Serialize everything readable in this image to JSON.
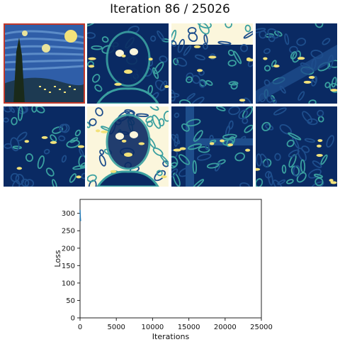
{
  "header": {
    "title": "Iteration 86 / 25026"
  },
  "tiles": [
    {
      "name": "style-reference-image",
      "kind": "starry-night"
    },
    {
      "name": "generated-face-1",
      "kind": "face-dark"
    },
    {
      "name": "generated-sky-1",
      "kind": "bright-band"
    },
    {
      "name": "generated-arm-1",
      "kind": "diagonal"
    },
    {
      "name": "generated-landscape-1",
      "kind": "waves"
    },
    {
      "name": "generated-face-2",
      "kind": "face-light"
    },
    {
      "name": "generated-landscape-2",
      "kind": "corner"
    },
    {
      "name": "generated-landscape-3",
      "kind": "streaks"
    }
  ],
  "colors": {
    "deep_blue": "#0a2a63",
    "mid_blue": "#1e4e8c",
    "teal": "#3aa0a0",
    "cream": "#fbf6dc",
    "yellow": "#f3e27a",
    "line": "#1f77b4"
  },
  "chart_data": {
    "type": "line",
    "xlabel": "Iterations",
    "ylabel": "Loss",
    "xlim": [
      0,
      25000
    ],
    "ylim": [
      0,
      340
    ],
    "xticks": [
      0,
      5000,
      10000,
      15000,
      20000,
      25000
    ],
    "yticks": [
      0,
      50,
      100,
      150,
      200,
      250,
      300
    ],
    "series": [
      {
        "x": [
          0,
          20,
          40,
          60,
          86
        ],
        "y": [
          310,
          298,
          288,
          282,
          278
        ]
      }
    ]
  }
}
